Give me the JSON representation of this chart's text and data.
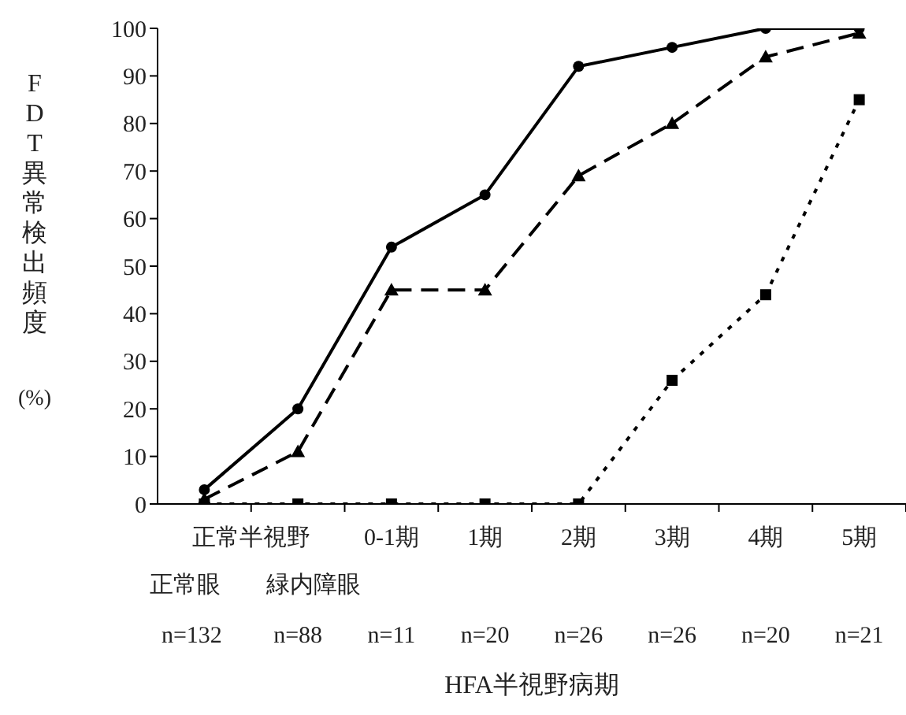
{
  "chart_data": {
    "type": "line",
    "xlabel": "HFA半視野病期",
    "ylabel": "FDT異常検出頻度(%)",
    "categories": [
      null,
      null,
      "0-1期",
      "1期",
      "2期",
      "3期",
      "4期",
      "5期"
    ],
    "series": [
      {
        "color": "#000000",
        "line_style": "solid",
        "marker": "circle",
        "values": [
          3,
          20,
          54,
          65,
          92,
          96,
          100,
          100
        ]
      },
      {
        "color": "#000000",
        "line_style": "dashed",
        "marker": "triangle",
        "values": [
          1,
          11,
          45,
          45,
          69,
          80,
          94,
          99
        ]
      },
      {
        "color": "#000000",
        "line_style": "dotted",
        "marker": "square",
        "values": [
          0,
          0,
          0,
          0,
          0,
          26,
          44,
          85
        ]
      }
    ],
    "ylim": [
      0,
      100
    ],
    "yticks": [
      0,
      10,
      20,
      30,
      40,
      50,
      60,
      70,
      80,
      90,
      100
    ],
    "grid": false,
    "legend": false,
    "annotations": [
      "正常半視野",
      "正常眼",
      "緑内障眼",
      "n=132",
      "n=88",
      "n=11",
      "n=20",
      "n=26",
      "n=26",
      "n=20",
      "n=21"
    ]
  }
}
